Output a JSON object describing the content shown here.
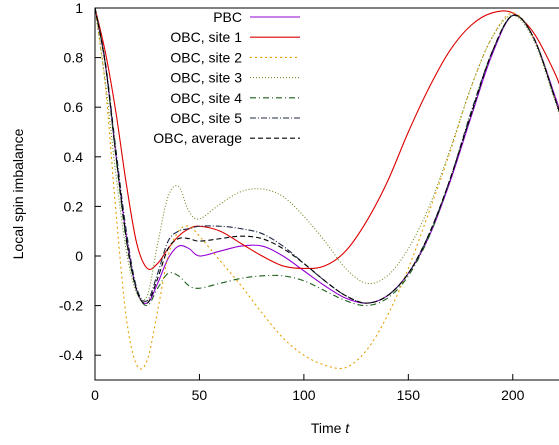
{
  "chart_data": {
    "type": "line",
    "xlabel": "Time",
    "xlabel_italic": "t",
    "ylabel": "Local spin imbalance",
    "xlim": [
      0,
      225
    ],
    "ylim": [
      -0.5,
      1.0
    ],
    "xticks": [
      0,
      50,
      100,
      150,
      200
    ],
    "xtick_labels": [
      "0",
      "50",
      "100",
      "150",
      "200"
    ],
    "yticks": [
      -0.4,
      -0.2,
      0,
      0.2,
      0.4,
      0.6,
      0.8,
      1
    ],
    "ytick_labels": [
      "-0.4",
      "-0.2",
      "0",
      "0.2",
      "0.4",
      "0.6",
      "0.8",
      "1"
    ],
    "grid": false,
    "legend_position": "top-right",
    "series": [
      {
        "name": "PBC",
        "color": "#9400d3",
        "dash": "solid",
        "x": [
          0,
          5,
          10,
          15,
          20,
          25,
          30,
          35,
          40,
          45,
          50,
          60,
          70,
          80,
          90,
          100,
          110,
          120,
          130,
          140,
          150,
          160,
          170,
          180,
          190,
          200,
          210,
          220,
          225
        ],
        "y": [
          1.0,
          0.77,
          0.41,
          0.08,
          -0.14,
          -0.19,
          -0.11,
          -0.01,
          0.04,
          0.03,
          0.0,
          0.02,
          0.04,
          0.04,
          0.0,
          -0.06,
          -0.12,
          -0.17,
          -0.19,
          -0.16,
          -0.07,
          0.08,
          0.3,
          0.56,
          0.81,
          0.97,
          0.88,
          0.65,
          0.52
        ]
      },
      {
        "name": "OBC, site 1",
        "color": "#dd0000",
        "dash": "solid",
        "x": [
          0,
          5,
          10,
          15,
          20,
          25,
          30,
          35,
          40,
          45,
          50,
          60,
          70,
          80,
          90,
          100,
          110,
          120,
          130,
          140,
          150,
          160,
          170,
          180,
          190,
          200,
          210,
          220,
          225
        ],
        "y": [
          1.0,
          0.82,
          0.58,
          0.29,
          0.05,
          -0.05,
          -0.03,
          0.03,
          0.08,
          0.11,
          0.12,
          0.1,
          0.05,
          0.0,
          -0.04,
          -0.05,
          -0.04,
          0.02,
          0.14,
          0.3,
          0.5,
          0.68,
          0.83,
          0.93,
          0.98,
          0.98,
          0.9,
          0.74,
          0.63
        ]
      },
      {
        "name": "OBC, site 2",
        "color": "#e69f00",
        "dash": "2,3",
        "x": [
          0,
          5,
          10,
          15,
          20,
          25,
          30,
          35,
          40,
          45,
          50,
          60,
          70,
          80,
          90,
          100,
          110,
          120,
          130,
          140,
          150,
          160,
          170,
          180,
          190,
          200,
          210,
          220,
          225
        ],
        "y": [
          1.0,
          0.68,
          0.18,
          -0.25,
          -0.44,
          -0.42,
          -0.22,
          0.0,
          0.1,
          0.12,
          0.08,
          -0.02,
          -0.12,
          -0.23,
          -0.33,
          -0.4,
          -0.44,
          -0.45,
          -0.38,
          -0.24,
          -0.05,
          0.18,
          0.42,
          0.68,
          0.88,
          0.98,
          0.88,
          0.64,
          0.51
        ]
      },
      {
        "name": "OBC, site 3",
        "color": "#6b8e23",
        "dash": "1,2",
        "x": [
          0,
          5,
          10,
          15,
          20,
          25,
          30,
          35,
          40,
          45,
          50,
          60,
          70,
          80,
          90,
          100,
          110,
          120,
          130,
          140,
          150,
          160,
          170,
          180,
          190,
          200,
          210,
          220,
          225
        ],
        "y": [
          1.0,
          0.7,
          0.33,
          0.02,
          -0.15,
          -0.16,
          0.05,
          0.24,
          0.28,
          0.18,
          0.15,
          0.21,
          0.26,
          0.27,
          0.24,
          0.16,
          0.06,
          -0.05,
          -0.11,
          -0.08,
          0.03,
          0.2,
          0.43,
          0.68,
          0.88,
          0.97,
          0.87,
          0.63,
          0.5
        ]
      },
      {
        "name": "OBC, site 4",
        "color": "#1a5e1a",
        "dash": "6,3,1,3",
        "x": [
          0,
          5,
          10,
          15,
          20,
          25,
          30,
          35,
          40,
          45,
          50,
          60,
          70,
          80,
          90,
          100,
          110,
          120,
          130,
          140,
          150,
          160,
          170,
          180,
          190,
          200,
          210,
          220,
          225
        ],
        "y": [
          1.0,
          0.77,
          0.4,
          0.06,
          -0.14,
          -0.2,
          -0.13,
          -0.07,
          -0.08,
          -0.12,
          -0.13,
          -0.11,
          -0.09,
          -0.08,
          -0.08,
          -0.1,
          -0.14,
          -0.18,
          -0.2,
          -0.17,
          -0.08,
          0.08,
          0.31,
          0.57,
          0.82,
          0.97,
          0.88,
          0.64,
          0.51
        ]
      },
      {
        "name": "OBC, site 5",
        "color": "#1f2a44",
        "dash": "6,2,1,2",
        "x": [
          0,
          5,
          10,
          15,
          20,
          25,
          30,
          35,
          40,
          45,
          50,
          60,
          70,
          80,
          90,
          100,
          110,
          120,
          130,
          140,
          150,
          160,
          170,
          180,
          190,
          200,
          210,
          220,
          225
        ],
        "y": [
          1.0,
          0.78,
          0.43,
          0.1,
          -0.13,
          -0.18,
          -0.07,
          0.06,
          0.1,
          0.11,
          0.12,
          0.12,
          0.11,
          0.09,
          0.04,
          -0.03,
          -0.1,
          -0.16,
          -0.19,
          -0.16,
          -0.07,
          0.09,
          0.31,
          0.58,
          0.82,
          0.97,
          0.88,
          0.64,
          0.51
        ]
      },
      {
        "name": "OBC, average",
        "color": "#000000",
        "dash": "5,3",
        "x": [
          0,
          5,
          10,
          15,
          20,
          25,
          30,
          35,
          40,
          45,
          50,
          60,
          70,
          80,
          90,
          100,
          110,
          120,
          130,
          140,
          150,
          160,
          170,
          180,
          190,
          200,
          210,
          220,
          225
        ],
        "y": [
          1.0,
          0.77,
          0.41,
          0.07,
          -0.14,
          -0.19,
          -0.09,
          0.03,
          0.07,
          0.07,
          0.06,
          0.07,
          0.08,
          0.07,
          0.03,
          -0.03,
          -0.1,
          -0.16,
          -0.19,
          -0.16,
          -0.07,
          0.09,
          0.31,
          0.57,
          0.82,
          0.97,
          0.88,
          0.64,
          0.51
        ]
      }
    ]
  }
}
